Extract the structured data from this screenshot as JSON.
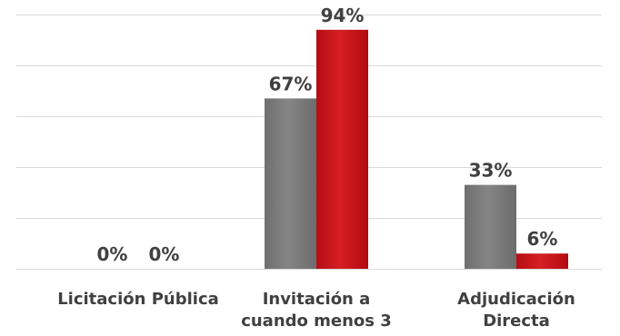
{
  "chart_data": {
    "type": "bar",
    "categories": [
      [
        "Licitación Pública"
      ],
      [
        "Invitación a",
        "cuando menos 3"
      ],
      [
        "Adjudicación",
        "Directa"
      ]
    ],
    "series": [
      {
        "values": [
          0,
          67,
          33
        ],
        "color": "#7f7f7f",
        "labels": [
          "0%",
          "67%",
          "33%"
        ]
      },
      {
        "values": [
          0,
          94,
          6
        ],
        "color": "#c00000",
        "labels": [
          "0%",
          "94%",
          "6%"
        ]
      }
    ],
    "ylim": [
      0,
      100
    ],
    "grid": true,
    "legend": "none",
    "gridline_color": "#d9d9d9",
    "text_color": "#404040"
  }
}
